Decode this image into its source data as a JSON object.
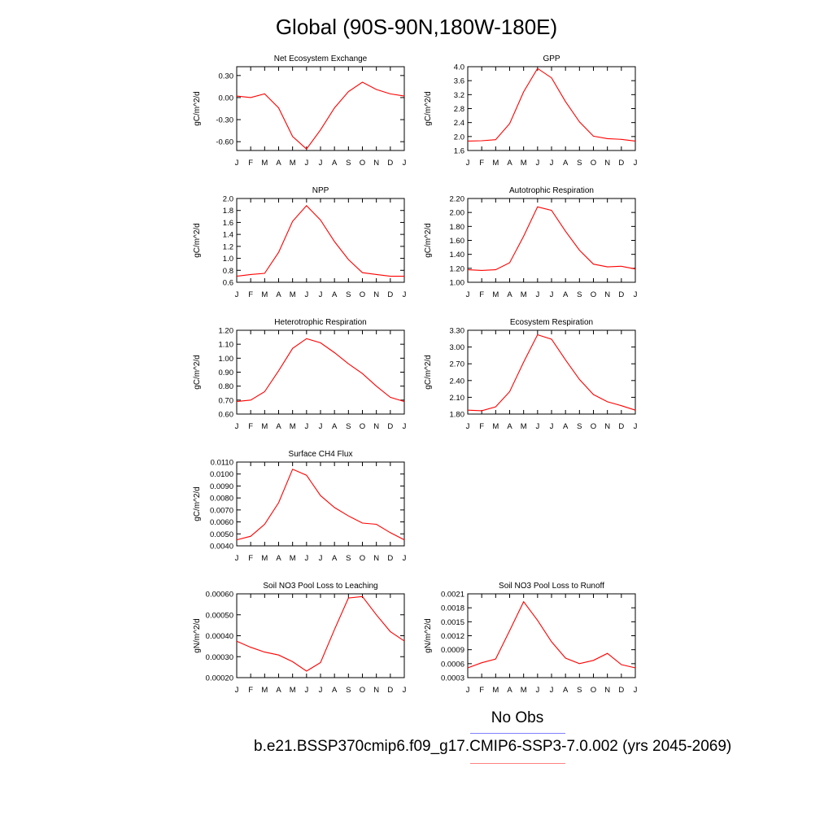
{
  "page_title": "Global (90S-90N,180W-180E)",
  "legend": {
    "obs_label": "No Obs",
    "case_label": "b.e21.BSSP370cmip6.f09_g17.CMIP6-SSP3-7.0.002 (yrs 2045-2069)",
    "obs_color": "#0000ff",
    "case_color": "#ff0000"
  },
  "colors": {
    "series": "#ff0000",
    "axis": "#000000"
  },
  "chart_data": [
    {
      "type": "line",
      "title": "Net Ecosystem Exchange",
      "ylabel": "gC/m^2/d",
      "categories": [
        "J",
        "F",
        "M",
        "A",
        "M",
        "J",
        "J",
        "A",
        "S",
        "O",
        "N",
        "D",
        "J"
      ],
      "ylim": [
        -0.72,
        0.42
      ],
      "yticks": [
        -0.6,
        -0.3,
        0.0,
        0.3
      ],
      "ytick_labels": [
        "-0.60",
        "-0.30",
        "0.00",
        "0.30"
      ],
      "values": [
        0.02,
        0.0,
        0.05,
        -0.14,
        -0.53,
        -0.7,
        -0.44,
        -0.14,
        0.08,
        0.21,
        0.11,
        0.05,
        0.02
      ]
    },
    {
      "type": "line",
      "title": "GPP",
      "ylabel": "gC/m^2/d",
      "categories": [
        "J",
        "F",
        "M",
        "A",
        "M",
        "J",
        "J",
        "A",
        "S",
        "O",
        "N",
        "D",
        "J"
      ],
      "ylim": [
        1.6,
        4.0
      ],
      "yticks": [
        1.6,
        2.0,
        2.4,
        2.8,
        3.2,
        3.6,
        4.0
      ],
      "ytick_labels": [
        "1.6",
        "2.0",
        "2.4",
        "2.8",
        "3.2",
        "3.6",
        "4.0"
      ],
      "values": [
        1.87,
        1.88,
        1.91,
        2.37,
        3.28,
        3.95,
        3.68,
        3.0,
        2.42,
        2.01,
        1.94,
        1.92,
        1.87
      ]
    },
    {
      "type": "line",
      "title": "NPP",
      "ylabel": "gC/m^2/d",
      "categories": [
        "J",
        "F",
        "M",
        "A",
        "M",
        "J",
        "J",
        "A",
        "S",
        "O",
        "N",
        "D",
        "J"
      ],
      "ylim": [
        0.6,
        2.0
      ],
      "yticks": [
        0.6,
        0.8,
        1.0,
        1.2,
        1.4,
        1.6,
        1.8,
        2.0
      ],
      "ytick_labels": [
        "0.6",
        "0.8",
        "1.0",
        "1.2",
        "1.4",
        "1.6",
        "1.8",
        "2.0"
      ],
      "values": [
        0.7,
        0.73,
        0.75,
        1.1,
        1.62,
        1.88,
        1.64,
        1.28,
        0.98,
        0.76,
        0.73,
        0.7,
        0.7
      ]
    },
    {
      "type": "line",
      "title": "Autotrophic Respiration",
      "ylabel": "gC/m^2/d",
      "categories": [
        "J",
        "F",
        "M",
        "A",
        "M",
        "J",
        "J",
        "A",
        "S",
        "O",
        "N",
        "D",
        "J"
      ],
      "ylim": [
        1.0,
        2.2
      ],
      "yticks": [
        1.0,
        1.2,
        1.4,
        1.6,
        1.8,
        2.0,
        2.2
      ],
      "ytick_labels": [
        "1.00",
        "1.20",
        "1.40",
        "1.60",
        "1.80",
        "2.00",
        "2.20"
      ],
      "values": [
        1.18,
        1.17,
        1.18,
        1.28,
        1.66,
        2.08,
        2.03,
        1.73,
        1.46,
        1.26,
        1.22,
        1.23,
        1.19
      ]
    },
    {
      "type": "line",
      "title": "Heterotrophic Respiration",
      "ylabel": "gC/m^2/d",
      "categories": [
        "J",
        "F",
        "M",
        "A",
        "M",
        "J",
        "J",
        "A",
        "S",
        "O",
        "N",
        "D",
        "J"
      ],
      "ylim": [
        0.6,
        1.2
      ],
      "yticks": [
        0.6,
        0.7,
        0.8,
        0.9,
        1.0,
        1.1,
        1.2
      ],
      "ytick_labels": [
        "0.60",
        "0.70",
        "0.80",
        "0.90",
        "1.00",
        "1.10",
        "1.20"
      ],
      "values": [
        0.69,
        0.7,
        0.76,
        0.91,
        1.07,
        1.14,
        1.11,
        1.04,
        0.96,
        0.89,
        0.8,
        0.72,
        0.69
      ]
    },
    {
      "type": "line",
      "title": "Ecosystem Respiration",
      "ylabel": "gC/m^2/d",
      "categories": [
        "J",
        "F",
        "M",
        "A",
        "M",
        "J",
        "J",
        "A",
        "S",
        "O",
        "N",
        "D",
        "J"
      ],
      "ylim": [
        1.8,
        3.3
      ],
      "yticks": [
        1.8,
        2.1,
        2.4,
        2.7,
        3.0,
        3.3
      ],
      "ytick_labels": [
        "1.80",
        "2.10",
        "2.40",
        "2.70",
        "3.00",
        "3.30"
      ],
      "values": [
        1.87,
        1.86,
        1.93,
        2.2,
        2.73,
        3.22,
        3.14,
        2.77,
        2.42,
        2.15,
        2.02,
        1.95,
        1.87
      ]
    },
    {
      "type": "line",
      "title": "Surface CH4 Flux",
      "ylabel": "gC/m^2/d",
      "categories": [
        "J",
        "F",
        "M",
        "A",
        "M",
        "J",
        "J",
        "A",
        "S",
        "O",
        "N",
        "D",
        "J"
      ],
      "ylim": [
        0.004,
        0.011
      ],
      "yticks": [
        0.004,
        0.005,
        0.006,
        0.007,
        0.008,
        0.009,
        0.01,
        0.011
      ],
      "ytick_labels": [
        "0.0040",
        "0.0050",
        "0.0060",
        "0.0070",
        "0.0080",
        "0.0090",
        "0.0100",
        "0.0110"
      ],
      "values": [
        0.0045,
        0.0048,
        0.0058,
        0.0076,
        0.0104,
        0.0099,
        0.0082,
        0.0072,
        0.0065,
        0.0059,
        0.0058,
        0.0051,
        0.0045
      ]
    },
    {
      "type": "line",
      "title": "Soil NO3 Pool Loss to Leaching",
      "ylabel": "gN/m^2/d",
      "categories": [
        "J",
        "F",
        "M",
        "A",
        "M",
        "J",
        "J",
        "A",
        "S",
        "O",
        "N",
        "D",
        "J"
      ],
      "ylim": [
        0.0002,
        0.0006
      ],
      "yticks": [
        0.0002,
        0.0003,
        0.0004,
        0.0005,
        0.0006
      ],
      "ytick_labels": [
        "0.00020",
        "0.00030",
        "0.00040",
        "0.00050",
        "0.00060"
      ],
      "values": [
        0.000374,
        0.000345,
        0.000322,
        0.000308,
        0.000276,
        0.000231,
        0.000272,
        0.00043,
        0.00058,
        0.000587,
        0.0005,
        0.00042,
        0.000375
      ]
    },
    {
      "type": "line",
      "title": "Soil NO3 Pool Loss to Runoff",
      "ylabel": "gN/m^2/d",
      "categories": [
        "J",
        "F",
        "M",
        "A",
        "M",
        "J",
        "J",
        "A",
        "S",
        "O",
        "N",
        "D",
        "J"
      ],
      "ylim": [
        0.0003,
        0.0021
      ],
      "yticks": [
        0.0003,
        0.0006,
        0.0009,
        0.0012,
        0.0015,
        0.0018,
        0.0021
      ],
      "ytick_labels": [
        "0.0003",
        "0.0006",
        "0.0009",
        "0.0012",
        "0.0015",
        "0.0018",
        "0.0021"
      ],
      "values": [
        0.00051,
        0.00062,
        0.0007,
        0.00131,
        0.00193,
        0.00153,
        0.00107,
        0.00072,
        0.0006,
        0.00067,
        0.00082,
        0.00058,
        0.00051
      ]
    }
  ]
}
